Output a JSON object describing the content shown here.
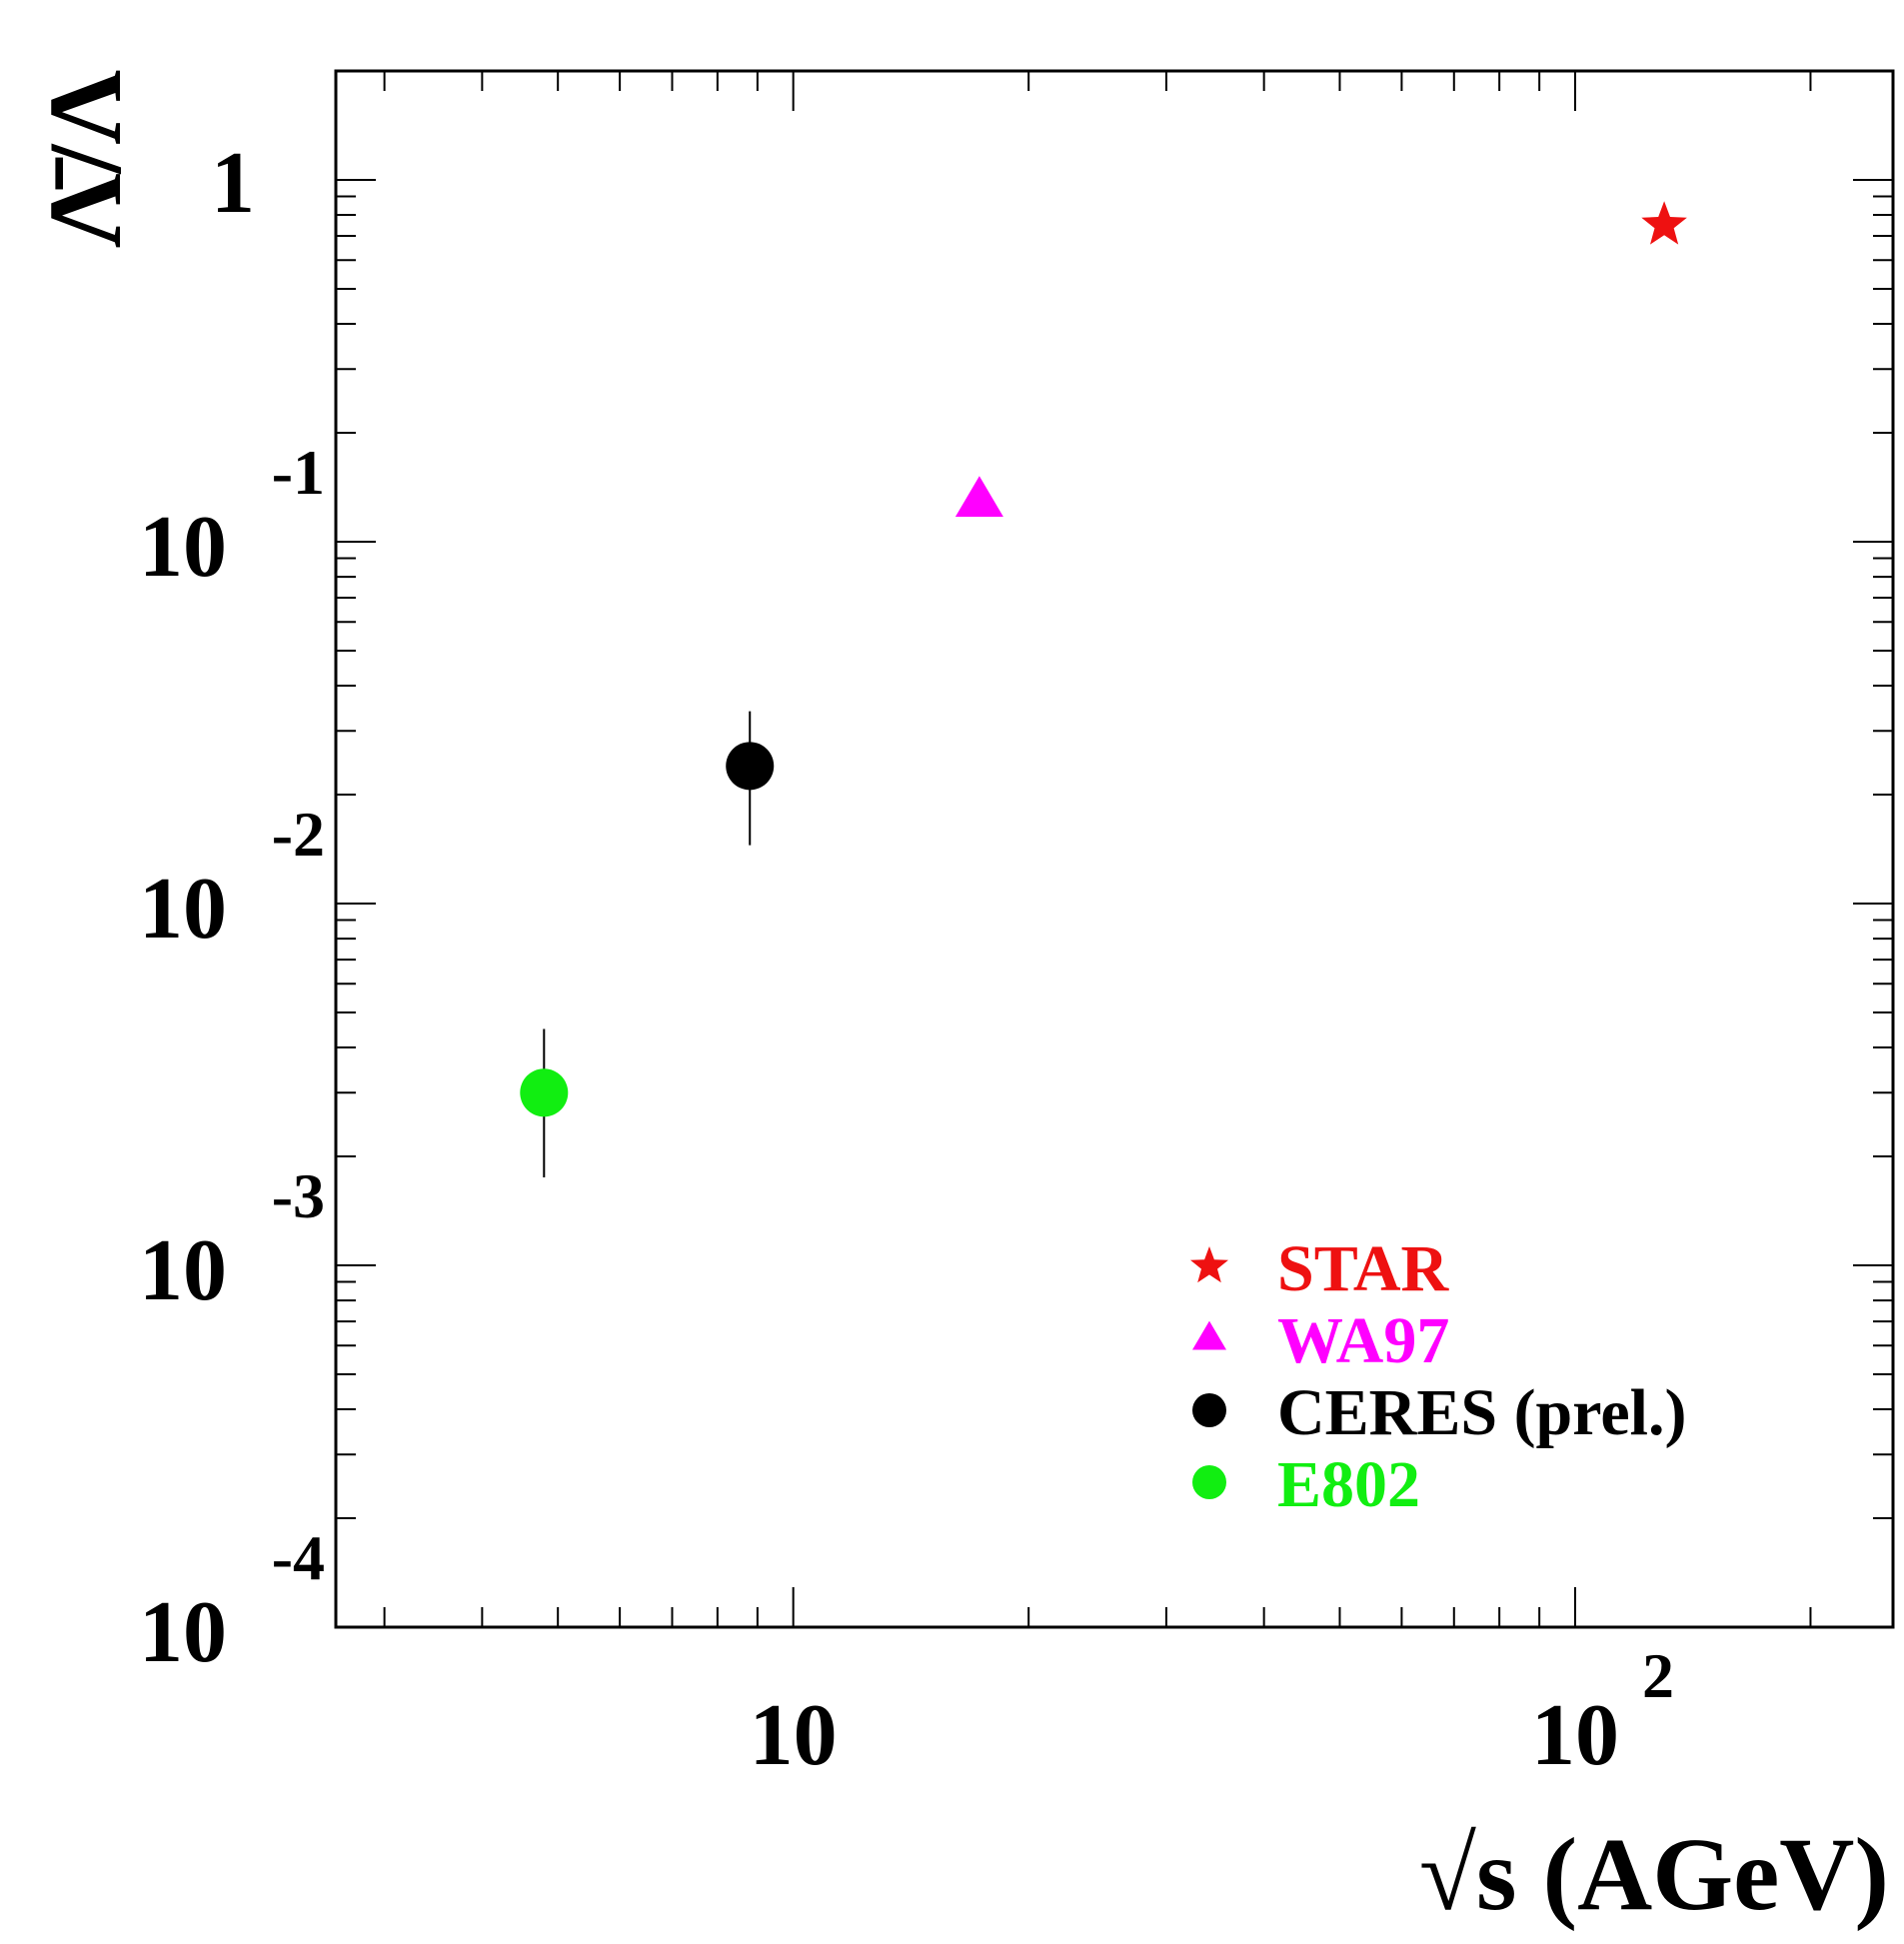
{
  "chart_data": {
    "type": "scatter",
    "xlabel": "√s (AGeV)",
    "ylabel": "Λ̄/Λ",
    "xscale": "log",
    "yscale": "log",
    "xlim": [
      2.6,
      255
    ],
    "ylim": [
      0.0001,
      2.0
    ],
    "grid": false,
    "legend_position": "bottom-right",
    "x_ticks": [
      {
        "value": 10,
        "mantissa": "10",
        "exponent": ""
      },
      {
        "value": 100,
        "mantissa": "10",
        "exponent": "2"
      }
    ],
    "y_ticks": [
      {
        "value": 1,
        "mantissa": "1",
        "exponent": ""
      },
      {
        "value": 0.1,
        "mantissa": "10",
        "exponent": "-1"
      },
      {
        "value": 0.01,
        "mantissa": "10",
        "exponent": "-2"
      },
      {
        "value": 0.001,
        "mantissa": "10",
        "exponent": "-3"
      },
      {
        "value": 0.0001,
        "mantissa": "10",
        "exponent": "-4"
      }
    ],
    "series": [
      {
        "name": "STAR",
        "marker": "star",
        "color": "#ee1111",
        "points": [
          {
            "x": 130,
            "y": 0.75
          }
        ]
      },
      {
        "name": "WA97",
        "marker": "triangle",
        "color": "#ff00ff",
        "points": [
          {
            "x": 17.3,
            "y": 0.13
          }
        ]
      },
      {
        "name": "CERES (prel.)",
        "marker": "circle",
        "color": "#000000",
        "points": [
          {
            "x": 8.8,
            "y": 0.024,
            "ylo": 0.0145,
            "yhi": 0.034
          }
        ]
      },
      {
        "name": "E802",
        "marker": "circle",
        "color": "#11ee11",
        "points": [
          {
            "x": 4.8,
            "y": 0.003,
            "ylo": 0.00175,
            "yhi": 0.0045
          }
        ]
      }
    ]
  }
}
